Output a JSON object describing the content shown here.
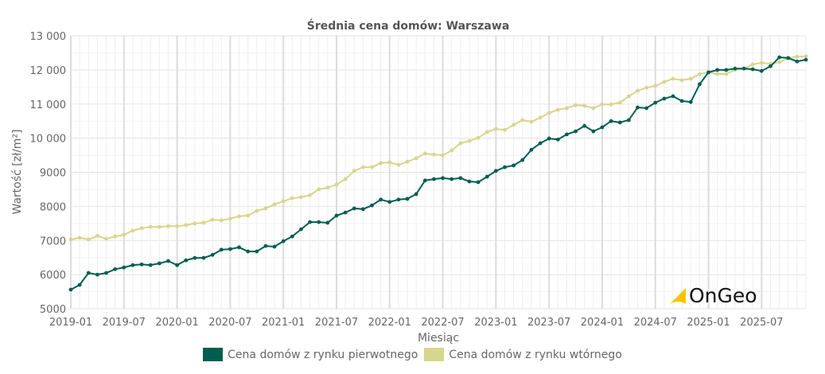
{
  "chart_data": {
    "type": "line",
    "title": "Średnia cena domów: Warszawa",
    "xlabel": "Miesiąc",
    "ylabel": "Wartość [zł/m²]",
    "ylim": [
      5000,
      13000
    ],
    "yticks": [
      "5000",
      "6000",
      "7000",
      "8000",
      "9000",
      "10 000",
      "11 000",
      "12 000",
      "13 000"
    ],
    "xticks": [
      "2019-01",
      "2019-07",
      "2020-01",
      "2020-07",
      "2021-01",
      "2021-07",
      "2022-01",
      "2022-07",
      "2023-01",
      "2023-07",
      "2024-01",
      "2024-07",
      "2025-01",
      "2025-07"
    ],
    "start": "2019-01",
    "grid": true,
    "legend_position": "bottom",
    "series": [
      {
        "name": "Cena domów z rynku pierwotnego",
        "color": "#005e50",
        "values": [
          5560,
          5700,
          6050,
          6000,
          6050,
          6160,
          6210,
          6280,
          6300,
          6280,
          6330,
          6400,
          6280,
          6420,
          6490,
          6490,
          6580,
          6730,
          6750,
          6800,
          6680,
          6680,
          6840,
          6820,
          6980,
          7120,
          7330,
          7540,
          7540,
          7520,
          7730,
          7820,
          7940,
          7920,
          8030,
          8200,
          8130,
          8200,
          8220,
          8360,
          8760,
          8800,
          8830,
          8800,
          8830,
          8730,
          8710,
          8870,
          9040,
          9150,
          9200,
          9360,
          9660,
          9850,
          9990,
          9960,
          10110,
          10200,
          10360,
          10200,
          10320,
          10500,
          10460,
          10530,
          10900,
          10880,
          11040,
          11160,
          11230,
          11090,
          11060,
          11580,
          11930,
          12000,
          12000,
          12040,
          12040,
          12020,
          11970,
          12110,
          12370,
          12350,
          12250,
          12300
        ]
      },
      {
        "name": "Cena domów z rynku wtórnego",
        "color": "#d6d68f",
        "values": [
          7030,
          7080,
          7030,
          7140,
          7050,
          7120,
          7170,
          7290,
          7360,
          7400,
          7400,
          7420,
          7420,
          7450,
          7500,
          7520,
          7610,
          7590,
          7640,
          7710,
          7730,
          7870,
          7940,
          8060,
          8150,
          8240,
          8270,
          8330,
          8500,
          8550,
          8640,
          8800,
          9040,
          9150,
          9150,
          9270,
          9290,
          9220,
          9310,
          9410,
          9550,
          9520,
          9500,
          9640,
          9850,
          9920,
          10010,
          10180,
          10270,
          10240,
          10390,
          10530,
          10480,
          10600,
          10740,
          10830,
          10880,
          10970,
          10950,
          10880,
          10990,
          10990,
          11040,
          11230,
          11390,
          11480,
          11530,
          11650,
          11740,
          11700,
          11740,
          11880,
          11930,
          11880,
          11880,
          12000,
          12040,
          12160,
          12210,
          12180,
          12230,
          12350,
          12390,
          12400
        ]
      }
    ]
  },
  "logo": {
    "text": "OnGeo",
    "accent": "#f5c400"
  }
}
